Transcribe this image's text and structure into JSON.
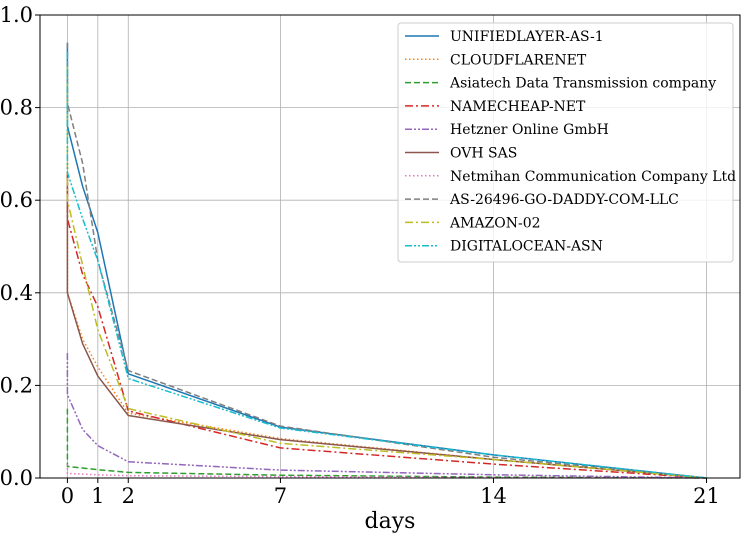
{
  "chart_data": {
    "type": "line",
    "xlabel": "days",
    "ylabel": "",
    "xlim": [
      -0.9,
      22.1
    ],
    "ylim": [
      0,
      1.0
    ],
    "xticks": [
      0,
      1,
      2,
      7,
      14,
      21
    ],
    "yticks": [
      0.0,
      0.2,
      0.4,
      0.6,
      0.8,
      1.0
    ],
    "xtick_labels": [
      "0",
      "1",
      "2",
      "7",
      "14",
      "21"
    ],
    "ytick_labels": [
      "0.0",
      "0.2",
      "0.4",
      "0.6",
      "0.8",
      "1.0"
    ],
    "grid": true,
    "legend_position": "top-right",
    "series": [
      {
        "name": "UNIFIEDLAYER-AS-1",
        "color": "#1f77b4",
        "dash": "",
        "points": [
          [
            0,
            0.94
          ],
          [
            0,
            0.76
          ],
          [
            0.5,
            0.63
          ],
          [
            1,
            0.53
          ],
          [
            2,
            0.225
          ],
          [
            7,
            0.11
          ],
          [
            14,
            0.05
          ],
          [
            21,
            0.0
          ]
        ]
      },
      {
        "name": "CLOUDFLARENET",
        "color": "#ff7f0e",
        "dash": "1.5,2.5",
        "points": [
          [
            0,
            0.68
          ],
          [
            0,
            0.4
          ],
          [
            0.5,
            0.3
          ],
          [
            1,
            0.24
          ],
          [
            2,
            0.14
          ],
          [
            7,
            0.085
          ],
          [
            14,
            0.04
          ],
          [
            21,
            0.0
          ]
        ]
      },
      {
        "name": "Asiatech Data Transmission company",
        "color": "#2ca02c",
        "dash": "6,3",
        "points": [
          [
            0,
            0.15
          ],
          [
            0,
            0.025
          ],
          [
            1,
            0.018
          ],
          [
            2,
            0.012
          ],
          [
            7,
            0.006
          ],
          [
            14,
            0.002
          ],
          [
            21,
            0.0
          ]
        ]
      },
      {
        "name": "NAMECHEAP-NET",
        "color": "#d62728",
        "dash": "8,3,2,3",
        "points": [
          [
            0,
            0.66
          ],
          [
            0,
            0.56
          ],
          [
            0.5,
            0.44
          ],
          [
            1,
            0.37
          ],
          [
            2,
            0.145
          ],
          [
            7,
            0.065
          ],
          [
            14,
            0.03
          ],
          [
            21,
            0.0
          ]
        ]
      },
      {
        "name": "Hetzner Online GmbH",
        "color": "#9467bd",
        "dash": "7,2,2,2,2,2",
        "points": [
          [
            0,
            0.27
          ],
          [
            0,
            0.18
          ],
          [
            0.5,
            0.105
          ],
          [
            1,
            0.07
          ],
          [
            2,
            0.035
          ],
          [
            7,
            0.017
          ],
          [
            14,
            0.007
          ],
          [
            21,
            0.0
          ]
        ]
      },
      {
        "name": "OVH SAS",
        "color": "#8c564b",
        "dash": "",
        "points": [
          [
            0,
            0.65
          ],
          [
            0,
            0.4
          ],
          [
            0.5,
            0.29
          ],
          [
            1,
            0.22
          ],
          [
            2,
            0.135
          ],
          [
            7,
            0.083
          ],
          [
            14,
            0.04
          ],
          [
            21,
            0.0
          ]
        ]
      },
      {
        "name": "Netmihan Communication Company Ltd",
        "color": "#e377c2",
        "dash": "1.5,2.5",
        "points": [
          [
            0,
            0.03
          ],
          [
            0,
            0.01
          ],
          [
            1,
            0.007
          ],
          [
            2,
            0.005
          ],
          [
            7,
            0.003
          ],
          [
            14,
            0.001
          ],
          [
            21,
            0.0
          ]
        ]
      },
      {
        "name": "AS-26496-GO-DADDY-COM-LLC",
        "color": "#7f7f7f",
        "dash": "6,3",
        "points": [
          [
            0,
            0.94
          ],
          [
            0,
            0.81
          ],
          [
            0.5,
            0.68
          ],
          [
            1,
            0.47
          ],
          [
            2,
            0.232
          ],
          [
            7,
            0.112
          ],
          [
            14,
            0.045
          ],
          [
            21,
            0.0
          ]
        ]
      },
      {
        "name": "AMAZON-02",
        "color": "#bcbd22",
        "dash": "8,3,2,3",
        "points": [
          [
            0,
            0.89
          ],
          [
            0,
            0.6
          ],
          [
            0.5,
            0.46
          ],
          [
            1,
            0.32
          ],
          [
            2,
            0.15
          ],
          [
            7,
            0.075
          ],
          [
            14,
            0.04
          ],
          [
            21,
            0.0
          ]
        ]
      },
      {
        "name": "DIGITALOCEAN-ASN",
        "color": "#17becf",
        "dash": "7,2,2,2,2,2",
        "points": [
          [
            0,
            0.92
          ],
          [
            0,
            0.66
          ],
          [
            0.5,
            0.56
          ],
          [
            1,
            0.47
          ],
          [
            2,
            0.215
          ],
          [
            7,
            0.108
          ],
          [
            14,
            0.05
          ],
          [
            21,
            0.0
          ]
        ]
      }
    ]
  }
}
